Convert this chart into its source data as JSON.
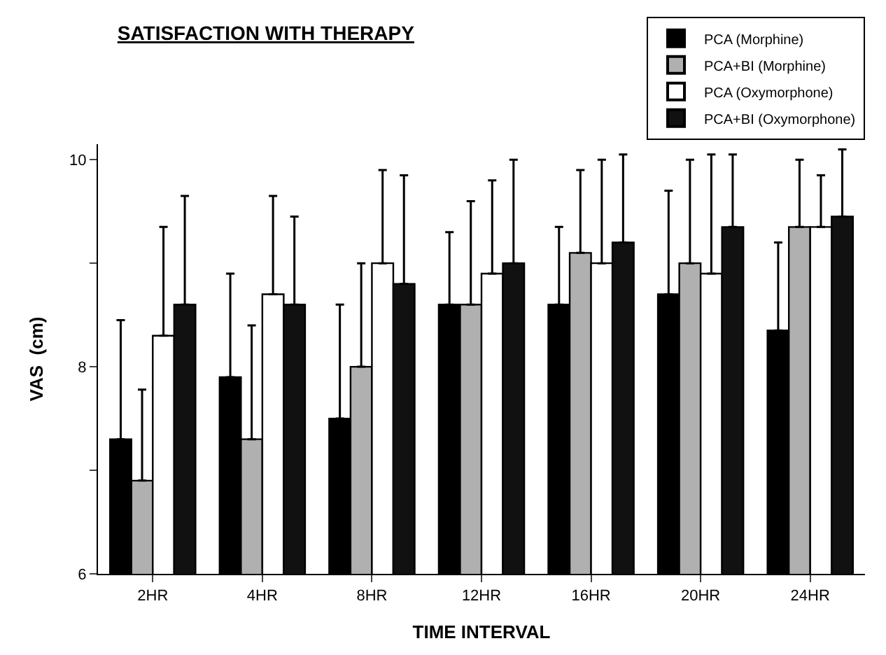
{
  "chart_data": {
    "type": "bar",
    "title": "SATISFACTION WITH THERAPY",
    "xlabel": "TIME INTERVAL",
    "ylabel": "VAS  (cm)",
    "categories": [
      "2HR",
      "4HR",
      "8HR",
      "12HR",
      "16HR",
      "20HR",
      "24HR"
    ],
    "series": [
      {
        "name": "PCA (Morphine)",
        "color": "#000000",
        "values": [
          7.3,
          7.9,
          7.5,
          8.6,
          8.6,
          8.7,
          8.35
        ],
        "errors": [
          [
            7.3,
            8.45
          ],
          [
            7.9,
            8.9
          ],
          [
            7.5,
            8.6
          ],
          [
            8.6,
            9.3
          ],
          [
            8.6,
            9.35
          ],
          [
            8.7,
            9.7
          ],
          [
            8.35,
            9.2
          ]
        ]
      },
      {
        "name": "PCA+BI (Morphine)",
        "color": "#b0b0b0",
        "values": [
          6.9,
          7.3,
          8.0,
          8.6,
          9.1,
          9.0,
          9.35
        ],
        "errors": [
          [
            6.9,
            7.78
          ],
          [
            7.3,
            8.4
          ],
          [
            8.0,
            9.0
          ],
          [
            8.6,
            9.6
          ],
          [
            9.1,
            9.9
          ],
          [
            9.0,
            10.0
          ],
          [
            9.35,
            10.0
          ]
        ]
      },
      {
        "name": "PCA (Oxymorphone)",
        "color": "#ffffff",
        "values": [
          8.3,
          8.7,
          9.0,
          8.9,
          9.0,
          8.9,
          9.35
        ],
        "errors": [
          [
            8.3,
            9.35
          ],
          [
            8.7,
            9.65
          ],
          [
            9.0,
            9.9
          ],
          [
            8.9,
            9.8
          ],
          [
            9.0,
            10.0
          ],
          [
            8.9,
            10.05
          ],
          [
            9.35,
            9.85
          ]
        ]
      },
      {
        "name": "PCA+BI (Oxymorphone)",
        "color": "#111111",
        "values": [
          8.6,
          8.6,
          8.8,
          9.0,
          9.2,
          9.35,
          9.45
        ],
        "errors": [
          [
            8.6,
            9.65
          ],
          [
            8.6,
            9.45
          ],
          [
            8.8,
            9.85
          ],
          [
            9.0,
            10.0
          ],
          [
            9.2,
            10.05
          ],
          [
            9.35,
            10.05
          ],
          [
            9.45,
            10.1
          ]
        ]
      }
    ],
    "ylim": [
      6,
      10.15
    ],
    "yticks": [
      6,
      {
        "value": 7,
        "label": null
      },
      8,
      {
        "value": 9,
        "label": null
      },
      10
    ],
    "legend": "top right"
  }
}
